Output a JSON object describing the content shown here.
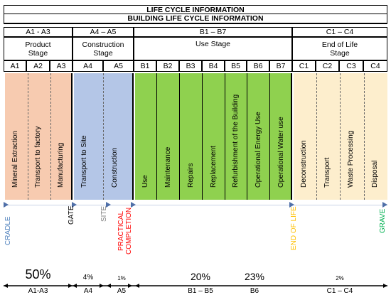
{
  "header": {
    "title": "LIFE CYCLE INFORMATION",
    "subtitle": "BUILDING LIFE CYCLE INFORMATION"
  },
  "groups": [
    {
      "code": "A1 - A3",
      "stage": "Product\nStage",
      "color": "#f7cbb0"
    },
    {
      "code": "A4 – A5",
      "stage": "Construction\nStage",
      "color": "#b4c6e7"
    },
    {
      "code": "B1 – B7",
      "stage": "Use Stage",
      "color": "#8fd14f"
    },
    {
      "code": "C1 – C4",
      "stage": "End of Life\nStage",
      "color": "#fdeecd"
    }
  ],
  "modules": [
    {
      "code": "A1",
      "label": "Mineral Extraction"
    },
    {
      "code": "A2",
      "label": "Transport to factory"
    },
    {
      "code": "A3",
      "label": "Manufacturing"
    },
    {
      "code": "A4",
      "label": "Transport to Site"
    },
    {
      "code": "A5",
      "label": "Construction"
    },
    {
      "code": "B1",
      "label": "Use"
    },
    {
      "code": "B2",
      "label": "Maintenance"
    },
    {
      "code": "B3",
      "label": "Repairs"
    },
    {
      "code": "B4",
      "label": "Replacement"
    },
    {
      "code": "B5",
      "label": "Refurbishment of the Building"
    },
    {
      "code": "B6",
      "label": "Operational Energy Use"
    },
    {
      "code": "B7",
      "label": "Operational Water use"
    },
    {
      "code": "C1",
      "label": "Deconstruction"
    },
    {
      "code": "C2",
      "label": "Transport"
    },
    {
      "code": "C3",
      "label": "Waste Processing"
    },
    {
      "code": "C4",
      "label": "Disposal"
    }
  ],
  "milestones": [
    {
      "label": "CRADLE",
      "color": "#4f81bd"
    },
    {
      "label": "GATE",
      "color": "#000000"
    },
    {
      "label": "SITE",
      "color": "#7f7f7f"
    },
    {
      "label": "PRACTICAL\nCOMPLETION",
      "color": "#ff0000"
    },
    {
      "label": "END OF LIFE",
      "color": "#ffc000"
    },
    {
      "label": "GRAVE",
      "color": "#00b050"
    }
  ],
  "percentages": [
    {
      "value": "50%",
      "label": "A1-A3"
    },
    {
      "value": "4%",
      "label": "A4"
    },
    {
      "value": "1%",
      "label": "A5"
    },
    {
      "value": "20%",
      "label": "B1 – B5"
    },
    {
      "value": "23%",
      "label": "B6"
    },
    {
      "value": "2%",
      "label": "C1 – C4"
    }
  ]
}
